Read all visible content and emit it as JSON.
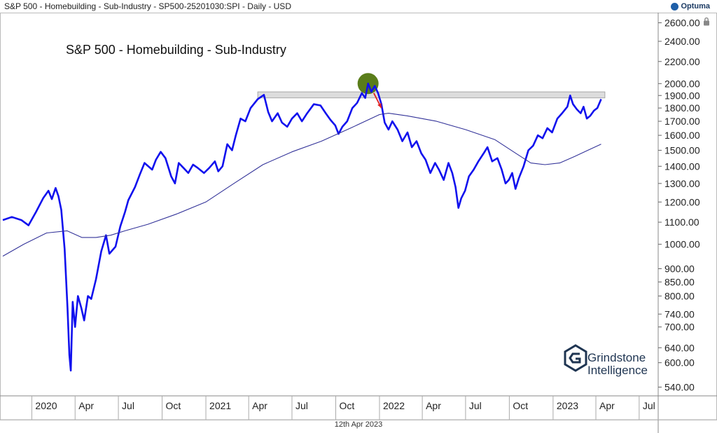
{
  "header": {
    "chart_description": "S&P 500 - Homebuilding - Sub-Industry - SP500-25201030:SPI - Daily - USD",
    "brand": "Optuma"
  },
  "footer": {
    "date_label": "12th Apr 2023"
  },
  "watermark": {
    "line1": "Grindstone",
    "line2": "Intelligence"
  },
  "icons": {
    "lock": "lock-icon",
    "brand_logo": "optuma-logo-icon"
  },
  "colors": {
    "price_line": "#1111ee",
    "moving_average": "#333399",
    "resistance_band": "#dddddd",
    "highlight_circle": "#5a7d1a",
    "arrow": "#e02020",
    "axis": "#666666",
    "watermark": "#1f3552"
  },
  "chart_data": {
    "type": "line",
    "title": "S&P 500 - Homebuilding - Sub-Industry",
    "scale": "log",
    "ylim": [
      520,
      2700
    ],
    "x_range": [
      "2019-11-01",
      "2023-08-10"
    ],
    "yticks": [
      540,
      600,
      640,
      700,
      740,
      800,
      850,
      900,
      1000,
      1100,
      1200,
      1300,
      1400,
      1500,
      1600,
      1700,
      1800,
      1900,
      2000,
      2200,
      2400,
      2600
    ],
    "ytick_labels": [
      "540.00",
      "600.00",
      "640.00",
      "700.00",
      "740.00",
      "800.00",
      "850.00",
      "900.00",
      "1000.00",
      "1100.00",
      "1200.00",
      "1300.00",
      "1400.00",
      "1500.00",
      "1600.00",
      "1700.00",
      "1800.00",
      "1900.00",
      "2000.00",
      "2200.00",
      "2400.00",
      "2600.00"
    ],
    "xticks": [
      {
        "date": "2020-01-01",
        "label": "2020"
      },
      {
        "date": "2020-04-01",
        "label": "Apr"
      },
      {
        "date": "2020-07-01",
        "label": "Jul"
      },
      {
        "date": "2020-10-01",
        "label": "Oct"
      },
      {
        "date": "2021-01-01",
        "label": "2021"
      },
      {
        "date": "2021-04-01",
        "label": "Apr"
      },
      {
        "date": "2021-07-01",
        "label": "Jul"
      },
      {
        "date": "2021-10-01",
        "label": "Oct"
      },
      {
        "date": "2022-01-01",
        "label": "2022"
      },
      {
        "date": "2022-04-01",
        "label": "Apr"
      },
      {
        "date": "2022-07-01",
        "label": "Jul"
      },
      {
        "date": "2022-10-01",
        "label": "Oct"
      },
      {
        "date": "2023-01-01",
        "label": "2023"
      },
      {
        "date": "2023-04-01",
        "label": "Apr"
      },
      {
        "date": "2023-07-01",
        "label": "Jul"
      }
    ],
    "series": [
      {
        "name": "Price",
        "points": [
          [
            "2019-11-01",
            1110
          ],
          [
            "2019-11-20",
            1125
          ],
          [
            "2019-12-10",
            1110
          ],
          [
            "2019-12-25",
            1085
          ],
          [
            "2020-01-10",
            1150
          ],
          [
            "2020-01-25",
            1220
          ],
          [
            "2020-02-05",
            1260
          ],
          [
            "2020-02-12",
            1215
          ],
          [
            "2020-02-20",
            1275
          ],
          [
            "2020-02-26",
            1230
          ],
          [
            "2020-03-03",
            1160
          ],
          [
            "2020-03-10",
            980
          ],
          [
            "2020-03-16",
            760
          ],
          [
            "2020-03-20",
            620
          ],
          [
            "2020-03-23",
            580
          ],
          [
            "2020-03-27",
            780
          ],
          [
            "2020-04-01",
            700
          ],
          [
            "2020-04-07",
            800
          ],
          [
            "2020-04-14",
            760
          ],
          [
            "2020-04-20",
            720
          ],
          [
            "2020-04-28",
            800
          ],
          [
            "2020-05-05",
            790
          ],
          [
            "2020-05-15",
            860
          ],
          [
            "2020-05-26",
            970
          ],
          [
            "2020-06-05",
            1040
          ],
          [
            "2020-06-12",
            960
          ],
          [
            "2020-06-25",
            990
          ],
          [
            "2020-07-05",
            1080
          ],
          [
            "2020-07-15",
            1150
          ],
          [
            "2020-07-22",
            1210
          ],
          [
            "2020-08-05",
            1280
          ],
          [
            "2020-08-15",
            1350
          ],
          [
            "2020-08-25",
            1420
          ],
          [
            "2020-09-10",
            1380
          ],
          [
            "2020-09-18",
            1440
          ],
          [
            "2020-09-28",
            1490
          ],
          [
            "2020-10-08",
            1450
          ],
          [
            "2020-10-20",
            1340
          ],
          [
            "2020-10-28",
            1300
          ],
          [
            "2020-11-05",
            1420
          ],
          [
            "2020-11-15",
            1390
          ],
          [
            "2020-11-25",
            1360
          ],
          [
            "2020-12-05",
            1410
          ],
          [
            "2020-12-15",
            1390
          ],
          [
            "2020-12-28",
            1360
          ],
          [
            "2021-01-08",
            1390
          ],
          [
            "2021-01-20",
            1430
          ],
          [
            "2021-01-27",
            1370
          ],
          [
            "2021-02-05",
            1400
          ],
          [
            "2021-02-15",
            1540
          ],
          [
            "2021-02-25",
            1500
          ],
          [
            "2021-03-05",
            1600
          ],
          [
            "2021-03-15",
            1720
          ],
          [
            "2021-03-25",
            1700
          ],
          [
            "2021-04-05",
            1800
          ],
          [
            "2021-04-20",
            1870
          ],
          [
            "2021-05-03",
            1905
          ],
          [
            "2021-05-12",
            1770
          ],
          [
            "2021-05-20",
            1700
          ],
          [
            "2021-06-01",
            1760
          ],
          [
            "2021-06-10",
            1690
          ],
          [
            "2021-06-21",
            1660
          ],
          [
            "2021-07-01",
            1720
          ],
          [
            "2021-07-12",
            1760
          ],
          [
            "2021-07-22",
            1700
          ],
          [
            "2021-08-02",
            1760
          ],
          [
            "2021-08-16",
            1830
          ],
          [
            "2021-08-30",
            1820
          ],
          [
            "2021-09-10",
            1760
          ],
          [
            "2021-09-20",
            1710
          ],
          [
            "2021-09-30",
            1670
          ],
          [
            "2021-10-07",
            1610
          ],
          [
            "2021-10-15",
            1660
          ],
          [
            "2021-10-25",
            1700
          ],
          [
            "2021-11-05",
            1800
          ],
          [
            "2021-11-15",
            1840
          ],
          [
            "2021-11-25",
            1920
          ],
          [
            "2021-12-02",
            1880
          ],
          [
            "2021-12-08",
            2000
          ],
          [
            "2021-12-15",
            1930
          ],
          [
            "2021-12-22",
            1980
          ],
          [
            "2021-12-29",
            1920
          ],
          [
            "2022-01-05",
            1830
          ],
          [
            "2022-01-12",
            1690
          ],
          [
            "2022-01-20",
            1640
          ],
          [
            "2022-01-28",
            1700
          ],
          [
            "2022-02-08",
            1640
          ],
          [
            "2022-02-18",
            1560
          ],
          [
            "2022-03-01",
            1620
          ],
          [
            "2022-03-10",
            1520
          ],
          [
            "2022-03-20",
            1560
          ],
          [
            "2022-03-30",
            1480
          ],
          [
            "2022-04-08",
            1440
          ],
          [
            "2022-04-18",
            1360
          ],
          [
            "2022-04-28",
            1420
          ],
          [
            "2022-05-06",
            1380
          ],
          [
            "2022-05-16",
            1320
          ],
          [
            "2022-05-26",
            1420
          ],
          [
            "2022-06-03",
            1360
          ],
          [
            "2022-06-10",
            1280
          ],
          [
            "2022-06-16",
            1170
          ],
          [
            "2022-06-22",
            1220
          ],
          [
            "2022-06-30",
            1260
          ],
          [
            "2022-07-08",
            1340
          ],
          [
            "2022-07-18",
            1380
          ],
          [
            "2022-07-28",
            1430
          ],
          [
            "2022-08-08",
            1480
          ],
          [
            "2022-08-16",
            1520
          ],
          [
            "2022-08-26",
            1430
          ],
          [
            "2022-09-06",
            1450
          ],
          [
            "2022-09-15",
            1380
          ],
          [
            "2022-09-23",
            1300
          ],
          [
            "2022-09-30",
            1320
          ],
          [
            "2022-10-07",
            1360
          ],
          [
            "2022-10-14",
            1270
          ],
          [
            "2022-10-21",
            1330
          ],
          [
            "2022-10-31",
            1400
          ],
          [
            "2022-11-10",
            1500
          ],
          [
            "2022-11-20",
            1530
          ],
          [
            "2022-11-30",
            1600
          ],
          [
            "2022-12-10",
            1580
          ],
          [
            "2022-12-20",
            1650
          ],
          [
            "2022-12-30",
            1620
          ],
          [
            "2023-01-10",
            1720
          ],
          [
            "2023-01-20",
            1760
          ],
          [
            "2023-01-31",
            1810
          ],
          [
            "2023-02-06",
            1900
          ],
          [
            "2023-02-12",
            1830
          ],
          [
            "2023-02-20",
            1790
          ],
          [
            "2023-02-28",
            1760
          ],
          [
            "2023-03-06",
            1810
          ],
          [
            "2023-03-13",
            1720
          ],
          [
            "2023-03-20",
            1740
          ],
          [
            "2023-03-28",
            1780
          ],
          [
            "2023-04-04",
            1800
          ],
          [
            "2023-04-12",
            1870
          ]
        ]
      },
      {
        "name": "Moving Average",
        "points": [
          [
            "2019-11-01",
            950
          ],
          [
            "2019-12-15",
            1000
          ],
          [
            "2020-02-01",
            1050
          ],
          [
            "2020-03-15",
            1060
          ],
          [
            "2020-04-15",
            1030
          ],
          [
            "2020-05-15",
            1030
          ],
          [
            "2020-06-15",
            1040
          ],
          [
            "2020-07-15",
            1060
          ],
          [
            "2020-09-01",
            1090
          ],
          [
            "2020-11-01",
            1140
          ],
          [
            "2021-01-01",
            1200
          ],
          [
            "2021-03-01",
            1300
          ],
          [
            "2021-05-01",
            1410
          ],
          [
            "2021-07-01",
            1490
          ],
          [
            "2021-09-01",
            1560
          ],
          [
            "2021-11-01",
            1650
          ],
          [
            "2022-01-01",
            1750
          ],
          [
            "2022-01-20",
            1760
          ],
          [
            "2022-03-01",
            1740
          ],
          [
            "2022-05-01",
            1700
          ],
          [
            "2022-07-01",
            1640
          ],
          [
            "2022-09-01",
            1570
          ],
          [
            "2022-10-15",
            1480
          ],
          [
            "2022-11-15",
            1420
          ],
          [
            "2022-12-15",
            1410
          ],
          [
            "2023-01-15",
            1420
          ],
          [
            "2023-02-15",
            1460
          ],
          [
            "2023-03-15",
            1500
          ],
          [
            "2023-04-12",
            1540
          ]
        ]
      }
    ],
    "annotations": {
      "resistance_band": {
        "from": "2021-04-20",
        "to": "2023-04-20",
        "low": 1880,
        "high": 1930
      },
      "highlight": {
        "date": "2021-12-08",
        "value": 2000
      },
      "arrow": {
        "from_date": "2021-12-20",
        "from_value": 1920,
        "to_date": "2022-01-05",
        "to_value": 1800
      }
    }
  }
}
